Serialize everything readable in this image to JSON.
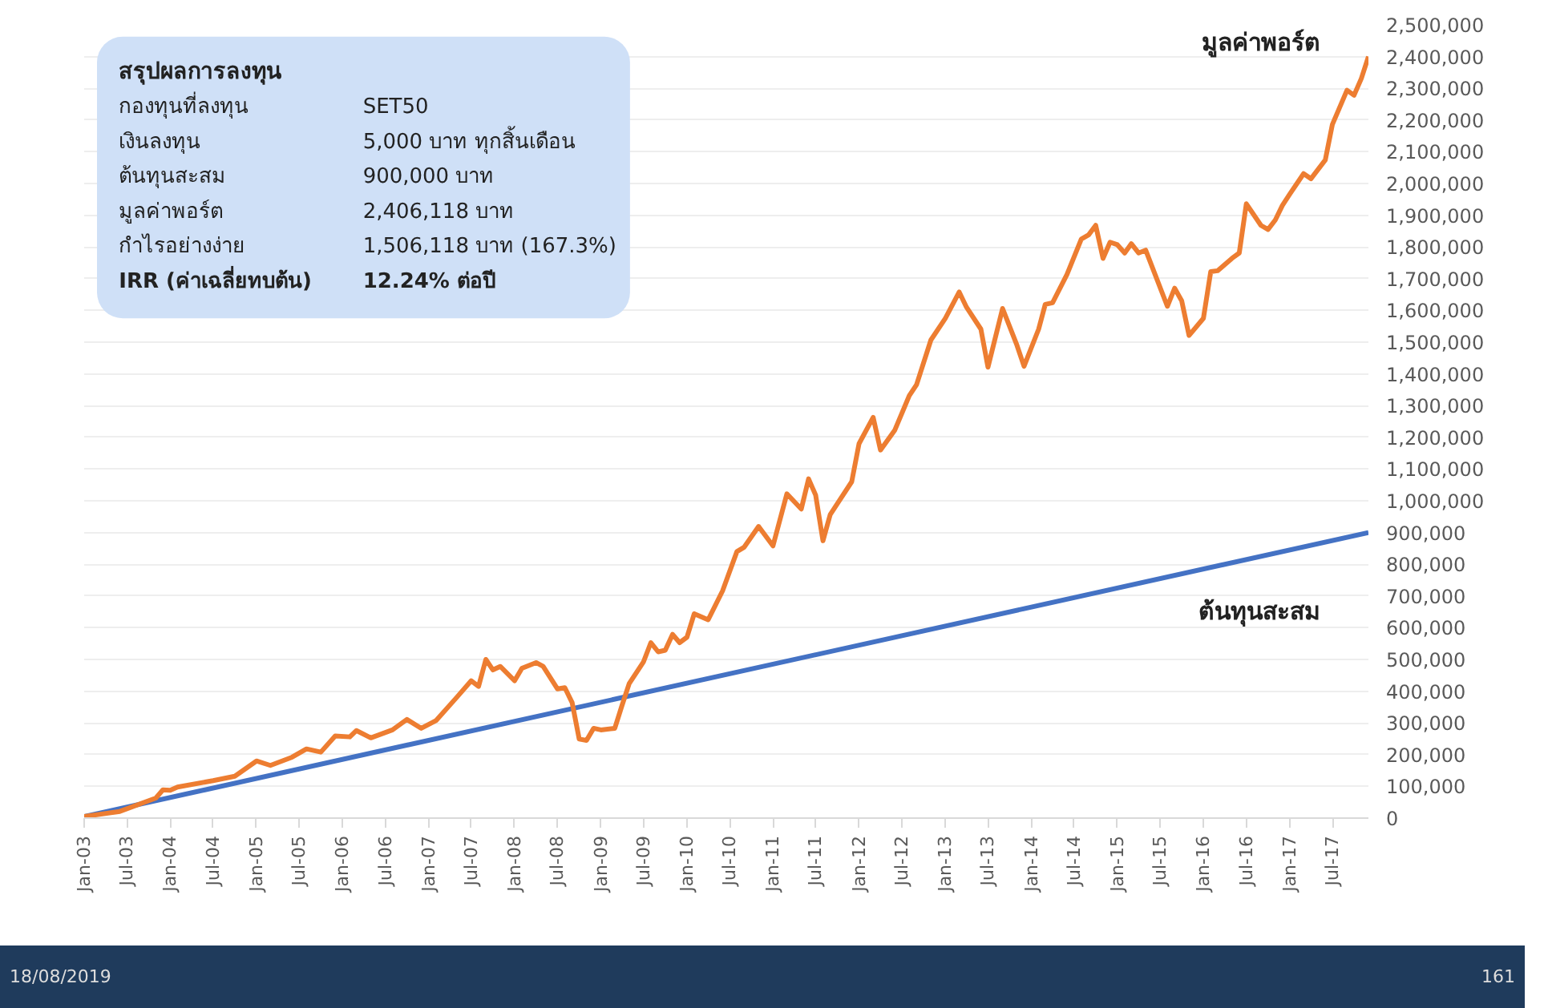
{
  "chart_data": {
    "type": "line",
    "series": [
      {
        "name": "มูลค่าพอร์ต",
        "color": "#ed7d31",
        "x": [
          "2003-01",
          "2003-06",
          "2003-11",
          "2003-12",
          "2004-01",
          "2004-02",
          "2004-07",
          "2004-10",
          "2005-01",
          "2005-03",
          "2005-06",
          "2005-08",
          "2005-10",
          "2005-12",
          "2006-02",
          "2006-03",
          "2006-05",
          "2006-08",
          "2006-10",
          "2006-12",
          "2007-02",
          "2007-05",
          "2007-07",
          "2007-08",
          "2007-09",
          "2007-10",
          "2007-11",
          "2008-01",
          "2008-02",
          "2008-04",
          "2008-05",
          "2008-07",
          "2008-08",
          "2008-09",
          "2008-10",
          "2008-11",
          "2008-12",
          "2009-01",
          "2009-03",
          "2009-04",
          "2009-05",
          "2009-07",
          "2009-08",
          "2009-09",
          "2009-10",
          "2009-11",
          "2009-12",
          "2010-01",
          "2010-02",
          "2010-04",
          "2010-06",
          "2010-08",
          "2010-09",
          "2010-11",
          "2011-01",
          "2011-03",
          "2011-05",
          "2011-06",
          "2011-07",
          "2011-08",
          "2011-09",
          "2011-10",
          "2011-12",
          "2012-01",
          "2012-03",
          "2012-04",
          "2012-06",
          "2012-08",
          "2012-09",
          "2012-11",
          "2013-01",
          "2013-03",
          "2013-04",
          "2013-06",
          "2013-07",
          "2013-09",
          "2013-11",
          "2013-12",
          "2014-02",
          "2014-03",
          "2014-04",
          "2014-06",
          "2014-08",
          "2014-09",
          "2014-10",
          "2014-11",
          "2014-12",
          "2015-01",
          "2015-02",
          "2015-03",
          "2015-04",
          "2015-05",
          "2015-08",
          "2015-09",
          "2015-10",
          "2015-11",
          "2016-01",
          "2016-02",
          "2016-03",
          "2016-05",
          "2016-06",
          "2016-07",
          "2016-09",
          "2016-10",
          "2016-11",
          "2016-12",
          "2017-01",
          "2017-03",
          "2017-04",
          "2017-06",
          "2017-07",
          "2017-09",
          "2017-10",
          "2017-11",
          "2017-12"
        ],
        "values": [
          5000,
          21000,
          63000,
          89000,
          88000,
          98000,
          118000,
          132000,
          180000,
          166000,
          192000,
          218000,
          208000,
          259000,
          256000,
          276000,
          253000,
          278000,
          311000,
          283000,
          307000,
          381000,
          433000,
          415000,
          500000,
          467000,
          478000,
          433000,
          472000,
          490000,
          478000,
          407000,
          411000,
          364000,
          249000,
          245000,
          283000,
          278000,
          283000,
          356000,
          424000,
          493000,
          553000,
          524000,
          529000,
          579000,
          553000,
          570000,
          644000,
          625000,
          716000,
          840000,
          854000,
          919000,
          858000,
          1022000,
          974000,
          1069000,
          1018000,
          874000,
          957000,
          991000,
          1060000,
          1180000,
          1263000,
          1160000,
          1223000,
          1331000,
          1366000,
          1507000,
          1575000,
          1658000,
          1610000,
          1541000,
          1421000,
          1606000,
          1490000,
          1424000,
          1541000,
          1619000,
          1624000,
          1713000,
          1825000,
          1838000,
          1868000,
          1764000,
          1815000,
          1807000,
          1781000,
          1810000,
          1781000,
          1790000,
          1613000,
          1670000,
          1630000,
          1521000,
          1575000,
          1722000,
          1725000,
          1764000,
          1781000,
          1936000,
          1868000,
          1855000,
          1885000,
          1931000,
          1966000,
          2031000,
          2015000,
          2074000,
          2186000,
          2294000,
          2278000,
          2331000,
          2400000
        ]
      },
      {
        "name": "ต้นทุนสะสม",
        "color": "#4472c4",
        "x": [
          "2003-01",
          "2017-12"
        ],
        "values": [
          5000,
          900000
        ]
      }
    ],
    "xlim": [
      "2003-01",
      "2017-12"
    ],
    "xticks": [
      {
        "value": "2003-01",
        "label": "Jan-03"
      },
      {
        "value": "2003-07",
        "label": "Jul-03"
      },
      {
        "value": "2004-01",
        "label": "Jan-04"
      },
      {
        "value": "2004-07",
        "label": "Jul-04"
      },
      {
        "value": "2005-01",
        "label": "Jan-05"
      },
      {
        "value": "2005-07",
        "label": "Jul-05"
      },
      {
        "value": "2006-01",
        "label": "Jan-06"
      },
      {
        "value": "2006-07",
        "label": "Jul-06"
      },
      {
        "value": "2007-01",
        "label": "Jan-07"
      },
      {
        "value": "2007-07",
        "label": "Jul-07"
      },
      {
        "value": "2008-01",
        "label": "Jan-08"
      },
      {
        "value": "2008-07",
        "label": "Jul-08"
      },
      {
        "value": "2009-01",
        "label": "Jan-09"
      },
      {
        "value": "2009-07",
        "label": "Jul-09"
      },
      {
        "value": "2010-01",
        "label": "Jan-10"
      },
      {
        "value": "2010-07",
        "label": "Jul-10"
      },
      {
        "value": "2011-01",
        "label": "Jan-11"
      },
      {
        "value": "2011-07",
        "label": "Jul-11"
      },
      {
        "value": "2012-01",
        "label": "Jan-12"
      },
      {
        "value": "2012-07",
        "label": "Jul-12"
      },
      {
        "value": "2013-01",
        "label": "Jan-13"
      },
      {
        "value": "2013-07",
        "label": "Jul-13"
      },
      {
        "value": "2014-01",
        "label": "Jan-14"
      },
      {
        "value": "2014-07",
        "label": "Jul-14"
      },
      {
        "value": "2015-01",
        "label": "Jan-15"
      },
      {
        "value": "2015-07",
        "label": "Jul-15"
      },
      {
        "value": "2016-01",
        "label": "Jan-16"
      },
      {
        "value": "2016-07",
        "label": "Jul-16"
      },
      {
        "value": "2017-01",
        "label": "Jan-17"
      },
      {
        "value": "2017-07",
        "label": "Jul-17"
      }
    ],
    "ylim": [
      0,
      2500000
    ],
    "yticks": [
      0,
      {
        "value": 100000,
        "label": "100,000"
      },
      {
        "value": 200000,
        "label": "200,000"
      },
      {
        "value": 300000,
        "label": "300,000"
      },
      {
        "value": 400000,
        "label": "400,000"
      },
      {
        "value": 500000,
        "label": "500,000"
      },
      {
        "value": 600000,
        "label": "600,000"
      },
      {
        "value": 700000,
        "label": "700,000"
      },
      {
        "value": 800000,
        "label": "800,000"
      },
      {
        "value": 900000,
        "label": "900,000"
      },
      {
        "value": 1000000,
        "label": "1,000,000"
      },
      {
        "value": 1100000,
        "label": "1,100,000"
      },
      {
        "value": 1200000,
        "label": "1,200,000"
      },
      {
        "value": 1300000,
        "label": "1,300,000"
      },
      {
        "value": 1400000,
        "label": "1,400,000"
      },
      {
        "value": 1500000,
        "label": "1,500,000"
      },
      {
        "value": 1600000,
        "label": "1,600,000"
      },
      {
        "value": 1700000,
        "label": "1,700,000"
      },
      {
        "value": 1800000,
        "label": "1,800,000"
      },
      {
        "value": 1900000,
        "label": "1,900,000"
      },
      {
        "value": 2000000,
        "label": "2,000,000"
      },
      {
        "value": 2100000,
        "label": "2,100,000"
      },
      {
        "value": 2200000,
        "label": "2,200,000"
      },
      {
        "value": 2300000,
        "label": "2,300,000"
      },
      {
        "value": 2400000,
        "label": "2,400,000"
      },
      {
        "value": 2500000,
        "label": "2,500,000"
      }
    ],
    "grid": "y",
    "line_style": "solid",
    "annotations": [
      "สรุปผลการลงทุน",
      "กองทุนที่ลงทุน",
      "SET50",
      "เงินลงทุน",
      "5,000 บาท ทุกสิ้นเดือน",
      "ต้นทุนสะสม",
      "900,000 บาท",
      "มูลค่าพอร์ต",
      "2,406,118 บาท",
      "กำไรอย่างง่าย",
      "1,506,118 บาท (167.3%)",
      "IRR (ค่าเฉลี่ยทบต้น)",
      "12.24% ต่อปี",
      "18/08/2019",
      "161"
    ]
  }
}
